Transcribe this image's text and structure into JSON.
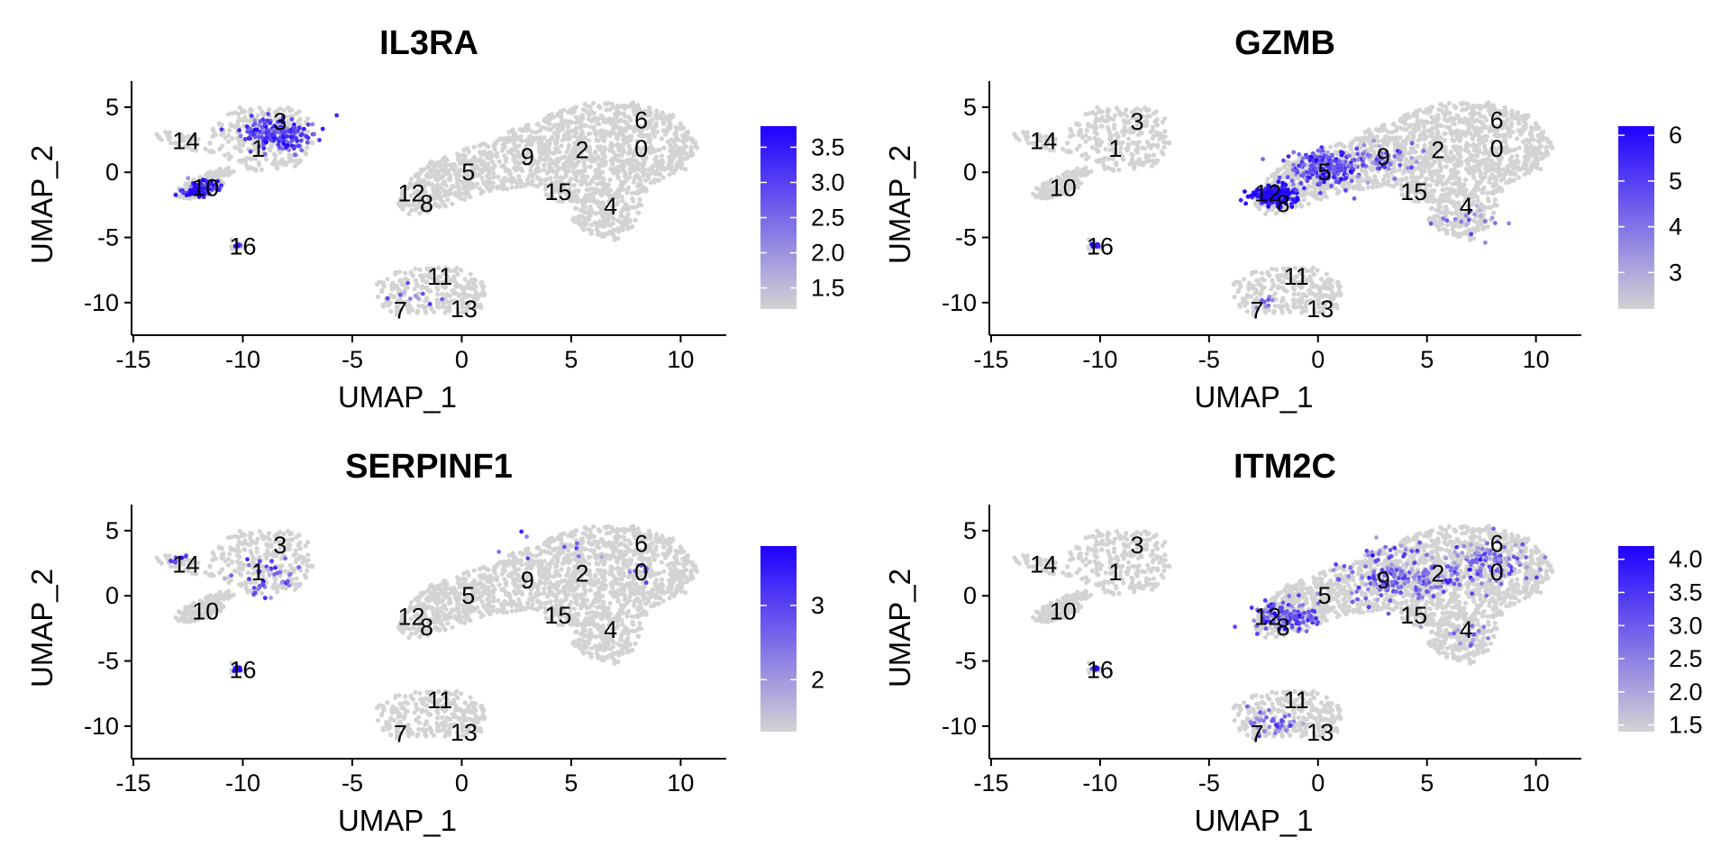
{
  "chart_data": [
    {
      "type": "scatter",
      "title": "IL3RA",
      "xlabel": "UMAP_1",
      "ylabel": "UMAP_2",
      "xlim": [
        -15,
        12
      ],
      "ylim": [
        -12.5,
        7
      ],
      "xticks": [
        -15,
        -10,
        -5,
        0,
        5,
        10
      ],
      "yticks": [
        5,
        0,
        -5,
        -10
      ],
      "grid": false,
      "legend": "right",
      "colorbar": {
        "min": 1.2,
        "max": 3.8,
        "ticks": [
          1.5,
          2.0,
          2.5,
          3.0,
          3.5
        ],
        "low_color": "#d3d3d3",
        "high_color": "#1f00ff"
      },
      "clusters": [
        {
          "label": "0",
          "x": 8.2,
          "y": 1.8
        },
        {
          "label": "1",
          "x": -9.3,
          "y": 1.8
        },
        {
          "label": "2",
          "x": 5.5,
          "y": 1.7
        },
        {
          "label": "3",
          "x": -8.3,
          "y": 3.9
        },
        {
          "label": "4",
          "x": 6.8,
          "y": -2.6
        },
        {
          "label": "5",
          "x": 0.3,
          "y": 0.0
        },
        {
          "label": "6",
          "x": 8.2,
          "y": 4.0
        },
        {
          "label": "7",
          "x": -2.8,
          "y": -10.6
        },
        {
          "label": "8",
          "x": -1.6,
          "y": -2.4
        },
        {
          "label": "9",
          "x": 3.0,
          "y": 1.2
        },
        {
          "label": "10",
          "x": -11.7,
          "y": -1.2
        },
        {
          "label": "11",
          "x": -1.0,
          "y": -8.0
        },
        {
          "label": "12",
          "x": -2.3,
          "y": -1.6
        },
        {
          "label": "13",
          "x": 0.1,
          "y": -10.5
        },
        {
          "label": "14",
          "x": -12.6,
          "y": 2.4
        },
        {
          "label": "15",
          "x": 4.4,
          "y": -1.5
        },
        {
          "label": "16",
          "x": -10.0,
          "y": -5.7
        }
      ],
      "expression": [
        {
          "x": -8.5,
          "y": 3.0,
          "spread": 1.4,
          "level": 0.7,
          "count": 180
        },
        {
          "x": -11.9,
          "y": -1.2,
          "spread": 0.7,
          "level": 0.85,
          "count": 90
        },
        {
          "x": -10.2,
          "y": -5.6,
          "spread": 0.15,
          "level": 0.95,
          "count": 10
        },
        {
          "x": -2.0,
          "y": -9.5,
          "spread": 1.0,
          "level": 0.5,
          "count": 10
        }
      ]
    },
    {
      "type": "scatter",
      "title": "GZMB",
      "xlabel": "UMAP_1",
      "ylabel": "UMAP_2",
      "xlim": [
        -15,
        12
      ],
      "ylim": [
        -12.5,
        7
      ],
      "xticks": [
        -15,
        -10,
        -5,
        0,
        5,
        10
      ],
      "yticks": [
        5,
        0,
        -5,
        -10
      ],
      "grid": false,
      "legend": "right",
      "colorbar": {
        "min": 2.2,
        "max": 6.2,
        "ticks": [
          3,
          4,
          5,
          6
        ],
        "low_color": "#d3d3d3",
        "high_color": "#1f00ff"
      },
      "clusters": [
        {
          "label": "0",
          "x": 8.2,
          "y": 1.8
        },
        {
          "label": "1",
          "x": -9.3,
          "y": 1.8
        },
        {
          "label": "2",
          "x": 5.5,
          "y": 1.7
        },
        {
          "label": "3",
          "x": -8.3,
          "y": 3.9
        },
        {
          "label": "4",
          "x": 6.8,
          "y": -2.6
        },
        {
          "label": "5",
          "x": 0.3,
          "y": 0.0
        },
        {
          "label": "6",
          "x": 8.2,
          "y": 4.0
        },
        {
          "label": "7",
          "x": -2.8,
          "y": -10.6
        },
        {
          "label": "8",
          "x": -1.6,
          "y": -2.4
        },
        {
          "label": "9",
          "x": 3.0,
          "y": 1.2
        },
        {
          "label": "10",
          "x": -11.7,
          "y": -1.2
        },
        {
          "label": "11",
          "x": -1.0,
          "y": -8.0
        },
        {
          "label": "12",
          "x": -2.3,
          "y": -1.6
        },
        {
          "label": "13",
          "x": 0.1,
          "y": -10.5
        },
        {
          "label": "14",
          "x": -12.6,
          "y": 2.4
        },
        {
          "label": "15",
          "x": 4.4,
          "y": -1.5
        },
        {
          "label": "16",
          "x": -10.0,
          "y": -5.7
        }
      ],
      "expression": [
        {
          "x": -2.0,
          "y": -1.8,
          "spread": 0.9,
          "level": 0.95,
          "count": 200
        },
        {
          "x": 0.3,
          "y": 0.3,
          "spread": 1.5,
          "level": 0.65,
          "count": 220
        },
        {
          "x": 3.0,
          "y": 1.0,
          "spread": 1.2,
          "level": 0.4,
          "count": 60
        },
        {
          "x": -10.2,
          "y": -5.6,
          "spread": 0.15,
          "level": 0.95,
          "count": 10
        },
        {
          "x": 7.0,
          "y": -3.5,
          "spread": 1.2,
          "level": 0.4,
          "count": 20
        },
        {
          "x": -2.5,
          "y": -10.0,
          "spread": 0.6,
          "level": 0.5,
          "count": 8
        }
      ]
    },
    {
      "type": "scatter",
      "title": "SERPINF1",
      "xlabel": "UMAP_1",
      "ylabel": "UMAP_2",
      "xlim": [
        -15,
        12
      ],
      "ylim": [
        -12.5,
        7
      ],
      "xticks": [
        -15,
        -10,
        -5,
        0,
        5,
        10
      ],
      "yticks": [
        5,
        0,
        -5,
        -10
      ],
      "grid": false,
      "legend": "right",
      "colorbar": {
        "min": 1.3,
        "max": 3.8,
        "ticks": [
          2,
          3
        ],
        "low_color": "#d3d3d3",
        "high_color": "#1f00ff"
      },
      "clusters": [
        {
          "label": "0",
          "x": 8.2,
          "y": 1.8
        },
        {
          "label": "1",
          "x": -9.3,
          "y": 1.8
        },
        {
          "label": "2",
          "x": 5.5,
          "y": 1.7
        },
        {
          "label": "3",
          "x": -8.3,
          "y": 3.9
        },
        {
          "label": "4",
          "x": 6.8,
          "y": -2.6
        },
        {
          "label": "5",
          "x": 0.3,
          "y": 0.0
        },
        {
          "label": "6",
          "x": 8.2,
          "y": 4.0
        },
        {
          "label": "7",
          "x": -2.8,
          "y": -10.6
        },
        {
          "label": "8",
          "x": -1.6,
          "y": -2.4
        },
        {
          "label": "9",
          "x": 3.0,
          "y": 1.2
        },
        {
          "label": "10",
          "x": -11.7,
          "y": -1.2
        },
        {
          "label": "11",
          "x": -1.0,
          "y": -8.0
        },
        {
          "label": "12",
          "x": -2.3,
          "y": -1.6
        },
        {
          "label": "13",
          "x": 0.1,
          "y": -10.5
        },
        {
          "label": "14",
          "x": -12.6,
          "y": 2.4
        },
        {
          "label": "15",
          "x": 4.4,
          "y": -1.5
        },
        {
          "label": "16",
          "x": -10.0,
          "y": -5.7
        }
      ],
      "expression": [
        {
          "x": -9.0,
          "y": 1.6,
          "spread": 1.6,
          "level": 0.55,
          "count": 40
        },
        {
          "x": -13.0,
          "y": 2.8,
          "spread": 0.5,
          "level": 0.7,
          "count": 8
        },
        {
          "x": -10.2,
          "y": -5.6,
          "spread": 0.15,
          "level": 0.95,
          "count": 10
        },
        {
          "x": 8.3,
          "y": 2.0,
          "spread": 0.6,
          "level": 0.55,
          "count": 8
        },
        {
          "x": 4.5,
          "y": 3.0,
          "spread": 4.0,
          "level": 0.5,
          "count": 10
        }
      ]
    },
    {
      "type": "scatter",
      "title": "ITM2C",
      "xlabel": "UMAP_1",
      "ylabel": "UMAP_2",
      "xlim": [
        -15,
        12
      ],
      "ylim": [
        -12.5,
        7
      ],
      "xticks": [
        -15,
        -10,
        -5,
        0,
        5,
        10
      ],
      "yticks": [
        5,
        0,
        -5,
        -10
      ],
      "grid": false,
      "legend": "right",
      "colorbar": {
        "min": 1.4,
        "max": 4.2,
        "ticks": [
          1.5,
          2.0,
          2.5,
          3.0,
          3.5,
          4.0
        ],
        "low_color": "#d3d3d3",
        "high_color": "#1f00ff"
      },
      "clusters": [
        {
          "label": "0",
          "x": 8.2,
          "y": 1.8
        },
        {
          "label": "1",
          "x": -9.3,
          "y": 1.8
        },
        {
          "label": "2",
          "x": 5.5,
          "y": 1.7
        },
        {
          "label": "3",
          "x": -8.3,
          "y": 3.9
        },
        {
          "label": "4",
          "x": 6.8,
          "y": -2.6
        },
        {
          "label": "5",
          "x": 0.3,
          "y": 0.0
        },
        {
          "label": "6",
          "x": 8.2,
          "y": 4.0
        },
        {
          "label": "7",
          "x": -2.8,
          "y": -10.6
        },
        {
          "label": "8",
          "x": -1.6,
          "y": -2.4
        },
        {
          "label": "9",
          "x": 3.0,
          "y": 1.2
        },
        {
          "label": "10",
          "x": -11.7,
          "y": -1.2
        },
        {
          "label": "11",
          "x": -1.0,
          "y": -8.0
        },
        {
          "label": "12",
          "x": -2.3,
          "y": -1.6
        },
        {
          "label": "13",
          "x": 0.1,
          "y": -10.5
        },
        {
          "label": "14",
          "x": -12.6,
          "y": 2.4
        },
        {
          "label": "15",
          "x": 4.4,
          "y": -1.5
        },
        {
          "label": "16",
          "x": -10.0,
          "y": -5.7
        }
      ],
      "expression": [
        {
          "x": -1.5,
          "y": -1.5,
          "spread": 1.3,
          "level": 0.65,
          "count": 120
        },
        {
          "x": 3.5,
          "y": 1.5,
          "spread": 2.4,
          "level": 0.5,
          "count": 160
        },
        {
          "x": 7.5,
          "y": 2.5,
          "spread": 1.8,
          "level": 0.45,
          "count": 120
        },
        {
          "x": -2.0,
          "y": -9.8,
          "spread": 1.2,
          "level": 0.45,
          "count": 45
        },
        {
          "x": -10.2,
          "y": -5.6,
          "spread": 0.15,
          "level": 0.9,
          "count": 8
        },
        {
          "x": 6.8,
          "y": -3.0,
          "spread": 1.0,
          "level": 0.35,
          "count": 15
        }
      ]
    }
  ]
}
